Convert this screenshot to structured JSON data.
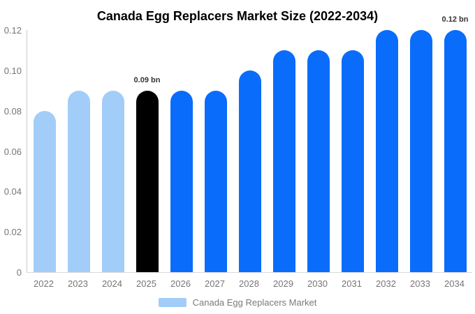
{
  "chart_data": {
    "type": "bar",
    "title": "Canada Egg Replacers Market Size (2022-2034)",
    "unit": "bn",
    "categories": [
      "2022",
      "2023",
      "2024",
      "2025",
      "2026",
      "2027",
      "2028",
      "2029",
      "2030",
      "2031",
      "2032",
      "2033",
      "2034"
    ],
    "values": [
      0.08,
      0.09,
      0.09,
      0.09,
      0.09,
      0.09,
      0.1,
      0.11,
      0.11,
      0.11,
      0.12,
      0.12,
      0.12
    ],
    "bar_colors": [
      "#A2CDF9",
      "#A2CDF9",
      "#A2CDF9",
      "#000000",
      "#0A6CFB",
      "#0A6CFB",
      "#0A6CFB",
      "#0A6CFB",
      "#0A6CFB",
      "#0A6CFB",
      "#0A6CFB",
      "#0A6CFB",
      "#0A6CFB"
    ],
    "annotations": [
      {
        "index": 3,
        "text": "0.09 bn"
      },
      {
        "index": 12,
        "text": "0.12 bn"
      }
    ],
    "xlabel": "",
    "ylabel": "",
    "ylim": [
      0,
      0.12
    ],
    "yticks": [
      "0",
      "0.02",
      "0.04",
      "0.06",
      "0.08",
      "0.10",
      "0.12"
    ],
    "grid": false,
    "legend_position": "bottom",
    "legend": [
      {
        "label": "Canada Egg Replacers Market",
        "color": "#A2CDF9"
      }
    ]
  },
  "colors": {
    "background": "#FFFFFF",
    "axis_line": "#CCCCCC",
    "baseline": "#D9D9D9",
    "tick_text": "#757575",
    "annotation_text": "#333333",
    "title_text": "#000000",
    "series_past": "#A2CDF9",
    "series_base_year": "#000000",
    "series_forecast": "#0A6CFB"
  }
}
